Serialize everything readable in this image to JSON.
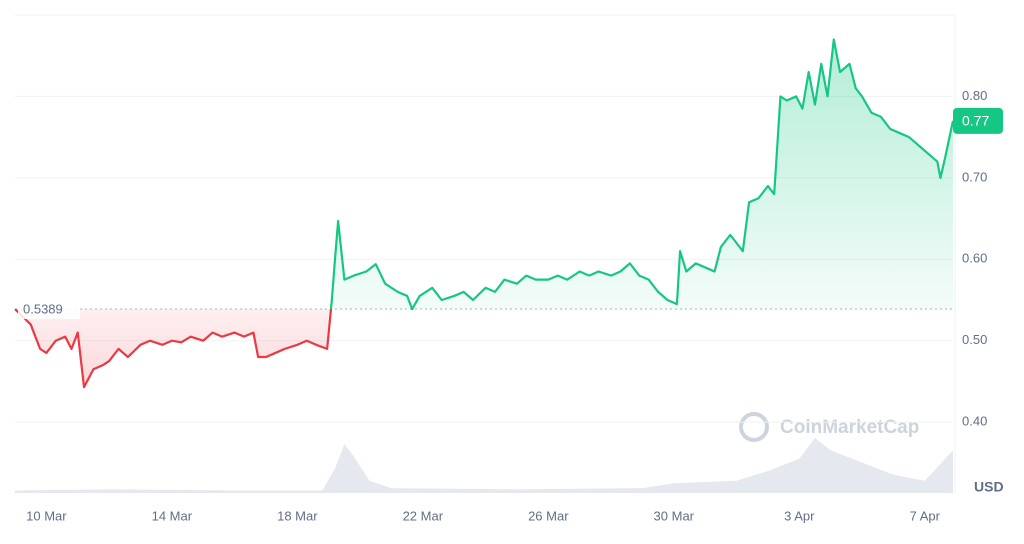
{
  "chart_data": {
    "type": "line",
    "x": [
      9.0,
      9.5,
      9.8,
      10.0,
      10.3,
      10.6,
      10.8,
      11.0,
      11.2,
      11.5,
      11.8,
      12.0,
      12.3,
      12.6,
      13.0,
      13.3,
      13.7,
      14.0,
      14.3,
      14.6,
      15.0,
      15.3,
      15.6,
      16.0,
      16.3,
      16.6,
      16.75,
      17.0,
      17.3,
      17.6,
      18.0,
      18.3,
      18.6,
      18.95,
      19.1,
      19.2,
      19.3,
      19.5,
      19.8,
      20.2,
      20.5,
      20.8,
      21.2,
      21.5,
      21.66,
      21.9,
      22.3,
      22.6,
      23.0,
      23.3,
      23.6,
      24.0,
      24.3,
      24.6,
      25.0,
      25.3,
      25.6,
      26.0,
      26.3,
      26.6,
      27.0,
      27.3,
      27.6,
      28.0,
      28.3,
      28.6,
      28.9,
      29.2,
      29.5,
      29.8,
      30.1,
      30.2,
      30.4,
      30.7,
      31.0,
      31.3,
      31.5,
      31.8,
      32.0,
      32.2,
      32.4,
      32.7,
      33.0,
      33.2,
      33.4,
      33.6,
      33.9,
      34.1,
      34.3,
      34.5,
      34.7,
      34.9,
      35.1,
      35.3,
      35.6,
      35.8,
      36.0,
      36.3,
      36.6,
      36.9,
      37.2,
      37.5,
      37.8,
      38.1,
      38.4,
      38.5,
      38.65,
      38.9
    ],
    "values": [
      0.5389,
      0.52,
      0.49,
      0.485,
      0.5,
      0.505,
      0.49,
      0.51,
      0.443,
      0.465,
      0.47,
      0.475,
      0.49,
      0.48,
      0.495,
      0.5,
      0.495,
      0.5,
      0.498,
      0.505,
      0.5,
      0.51,
      0.505,
      0.51,
      0.505,
      0.51,
      0.48,
      0.48,
      0.485,
      0.49,
      0.495,
      0.5,
      0.495,
      0.49,
      0.55,
      0.6,
      0.647,
      0.575,
      0.58,
      0.585,
      0.594,
      0.57,
      0.56,
      0.555,
      0.5389,
      0.555,
      0.565,
      0.55,
      0.555,
      0.56,
      0.55,
      0.565,
      0.56,
      0.575,
      0.57,
      0.58,
      0.575,
      0.575,
      0.58,
      0.575,
      0.585,
      0.58,
      0.585,
      0.58,
      0.585,
      0.595,
      0.58,
      0.575,
      0.56,
      0.55,
      0.545,
      0.61,
      0.585,
      0.595,
      0.59,
      0.585,
      0.615,
      0.63,
      0.62,
      0.61,
      0.67,
      0.675,
      0.69,
      0.68,
      0.8,
      0.795,
      0.8,
      0.785,
      0.83,
      0.79,
      0.84,
      0.8,
      0.87,
      0.83,
      0.84,
      0.81,
      0.8,
      0.78,
      0.775,
      0.76,
      0.755,
      0.75,
      0.74,
      0.73,
      0.72,
      0.7,
      0.725,
      0.77
    ],
    "colors": {
      "above": "#16c784",
      "below": "#ea3943"
    },
    "baseline": 0.5389,
    "last_price": 0.77,
    "volume": {
      "x": [
        9,
        12,
        16,
        18.8,
        19.2,
        19.5,
        19.8,
        20.3,
        21,
        25,
        29,
        30,
        32,
        33,
        34,
        34.5,
        35,
        36,
        37,
        38,
        38.9
      ],
      "values": [
        2,
        3,
        2,
        2,
        20,
        40,
        30,
        10,
        4,
        3,
        4,
        8,
        10,
        18,
        28,
        45,
        35,
        25,
        15,
        10,
        35
      ],
      "color": "#e5e8ee"
    },
    "xlim": [
      9.0,
      38.9
    ],
    "ylim": [
      0.313,
      0.9
    ],
    "xticks": [
      {
        "value": 10,
        "label": "10 Mar"
      },
      {
        "value": 14,
        "label": "14 Mar"
      },
      {
        "value": 18,
        "label": "18 Mar"
      },
      {
        "value": 22,
        "label": "22 Mar"
      },
      {
        "value": 26,
        "label": "26 Mar"
      },
      {
        "value": 30,
        "label": "30 Mar"
      },
      {
        "value": 34,
        "label": "3 Apr"
      },
      {
        "value": 38,
        "label": "7 Apr"
      }
    ],
    "yticks": [
      {
        "value": 0.4,
        "label": "0.40"
      },
      {
        "value": 0.5,
        "label": "0.50"
      },
      {
        "value": 0.6,
        "label": "0.60"
      },
      {
        "value": 0.7,
        "label": "0.70"
      },
      {
        "value": 0.8,
        "label": "0.80"
      }
    ],
    "currency": "USD",
    "watermark": "CoinMarketCap",
    "grid": true
  }
}
